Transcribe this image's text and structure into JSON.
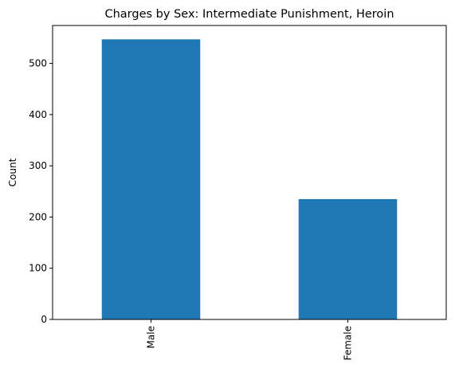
{
  "chart_data": {
    "type": "bar",
    "title": "Charges by Sex: Intermediate Punishment, Heroin",
    "xlabel": "",
    "ylabel": "Count",
    "categories": [
      "Male",
      "Female"
    ],
    "values": [
      547,
      235
    ],
    "ylim": [
      0,
      574
    ],
    "yticks": [
      0,
      100,
      200,
      300,
      400,
      500
    ],
    "legend": "none",
    "grid": false,
    "colors": {
      "bar": "#1f77b4"
    }
  }
}
